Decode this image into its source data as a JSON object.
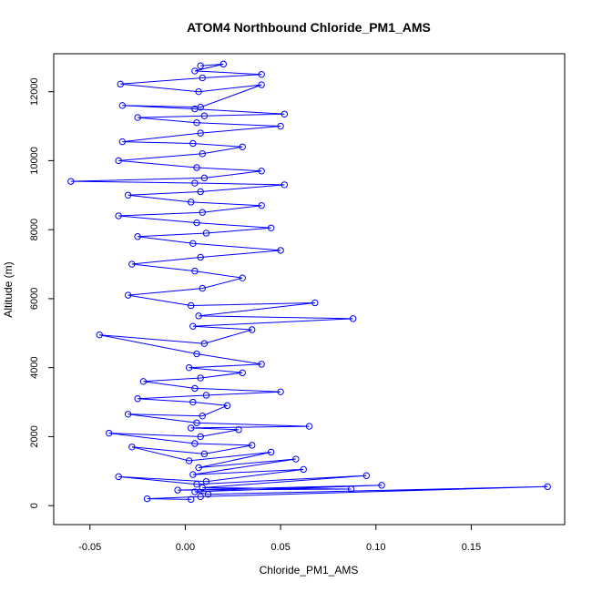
{
  "chart_data": {
    "type": "line",
    "title": "ATOM4 Northbound Chloride_PM1_AMS",
    "xlabel": "Chloride_PM1_AMS",
    "ylabel": "Altitude (m)",
    "xlim": [
      -0.069,
      0.199
    ],
    "ylim": [
      -550,
      13100
    ],
    "x_ticks": [
      -0.05,
      0.0,
      0.05,
      0.1,
      0.15
    ],
    "x_tick_labels": [
      "-0.05",
      "0.00",
      "0.05",
      "0.10",
      "0.15"
    ],
    "y_ticks": [
      0,
      2000,
      4000,
      6000,
      8000,
      10000,
      12000
    ],
    "y_tick_labels": [
      "0",
      "2000",
      "4000",
      "6000",
      "8000",
      "10000",
      "12000"
    ],
    "series": [
      {
        "color": "#0000ff",
        "marker": "open-circle",
        "x": [
          0.003,
          -0.02,
          0.008,
          0.19,
          0.012,
          0.005,
          0.103,
          -0.004,
          0.087,
          0.009,
          0.095,
          0.006,
          -0.035,
          0.011,
          0.062,
          0.004,
          0.058,
          0.007,
          0.045,
          0.002,
          -0.028,
          0.01,
          0.035,
          0.005,
          -0.04,
          0.008,
          0.028,
          0.003,
          0.065,
          0.006,
          -0.03,
          0.009,
          0.022,
          0.004,
          -0.025,
          0.011,
          0.05,
          0.005,
          -0.022,
          0.008,
          0.03,
          0.002,
          0.04,
          0.006,
          -0.045,
          0.01,
          0.035,
          0.004,
          0.088,
          0.007,
          0.068,
          0.003,
          -0.03,
          0.009,
          0.03,
          0.005,
          -0.028,
          0.008,
          0.05,
          0.004,
          -0.025,
          0.011,
          0.045,
          0.006,
          -0.035,
          0.009,
          0.04,
          0.003,
          -0.03,
          0.008,
          0.052,
          0.005,
          -0.06,
          0.01,
          0.04,
          0.006,
          -0.035,
          0.009,
          0.03,
          0.004,
          -0.033,
          0.008,
          0.05,
          0.006,
          -0.025,
          0.01,
          0.052,
          0.005,
          -0.033,
          0.008,
          0.04,
          0.007,
          -0.034,
          0.009,
          0.04,
          0.005,
          0.02,
          0.008
        ],
        "y": [
          180,
          200,
          260,
          550,
          330,
          400,
          590,
          450,
          480,
          520,
          870,
          620,
          840,
          700,
          1050,
          900,
          1350,
          1100,
          1550,
          1300,
          1700,
          1500,
          1750,
          1800,
          2100,
          2000,
          2200,
          2250,
          2300,
          2400,
          2650,
          2600,
          2900,
          3000,
          3100,
          3200,
          3300,
          3400,
          3600,
          3700,
          3850,
          4000,
          4100,
          4400,
          4950,
          4700,
          5100,
          5200,
          5420,
          5500,
          5880,
          5800,
          6100,
          6300,
          6600,
          6800,
          7000,
          7200,
          7400,
          7600,
          7800,
          7900,
          8050,
          8200,
          8400,
          8500,
          8700,
          8800,
          9000,
          9100,
          9300,
          9350,
          9400,
          9500,
          9700,
          9800,
          10000,
          10200,
          10400,
          10500,
          10550,
          10800,
          11000,
          11100,
          11250,
          11300,
          11350,
          11500,
          11600,
          11550,
          12200,
          12000,
          12220,
          12400,
          12500,
          12600,
          12800,
          12750
        ]
      }
    ],
    "grid": false
  }
}
